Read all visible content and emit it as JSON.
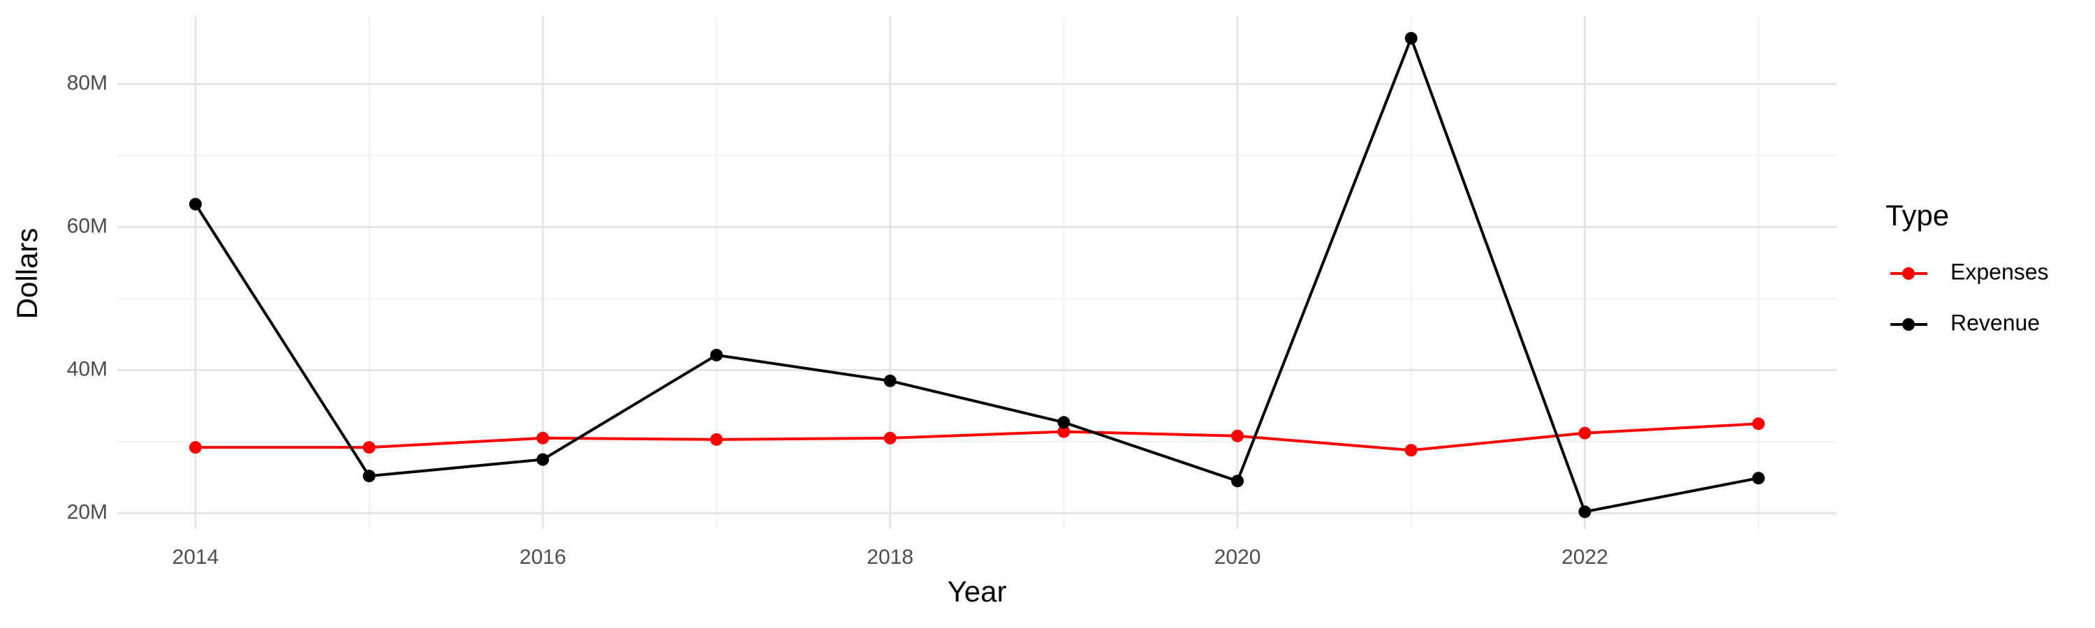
{
  "chart_data": {
    "type": "line",
    "x": [
      2014,
      2015,
      2016,
      2017,
      2018,
      2019,
      2020,
      2021,
      2022,
      2023
    ],
    "x_label": "Year",
    "y_label": "Dollars",
    "legend_title": "Type",
    "series": [
      {
        "name": "Expenses",
        "color": "#ff0000",
        "values": [
          29200000,
          29200000,
          30500000,
          30300000,
          30500000,
          31400000,
          30800000,
          28800000,
          31200000,
          32500000
        ]
      },
      {
        "name": "Revenue",
        "color": "#000000",
        "values": [
          63200000,
          25200000,
          27500000,
          42100000,
          38500000,
          32700000,
          24500000,
          86400000,
          20200000,
          24900000
        ]
      }
    ],
    "xlim": [
      2013.55,
      2023.45
    ],
    "xticks": [
      2014,
      2016,
      2018,
      2020,
      2022
    ],
    "ylim": [
      17800000,
      89500000
    ],
    "yticks": [
      {
        "value": 20000000,
        "label": "20M"
      },
      {
        "value": 40000000,
        "label": "40M"
      },
      {
        "value": 60000000,
        "label": "60M"
      },
      {
        "value": 80000000,
        "label": "80M"
      }
    ],
    "grid": true,
    "legend": "right"
  }
}
